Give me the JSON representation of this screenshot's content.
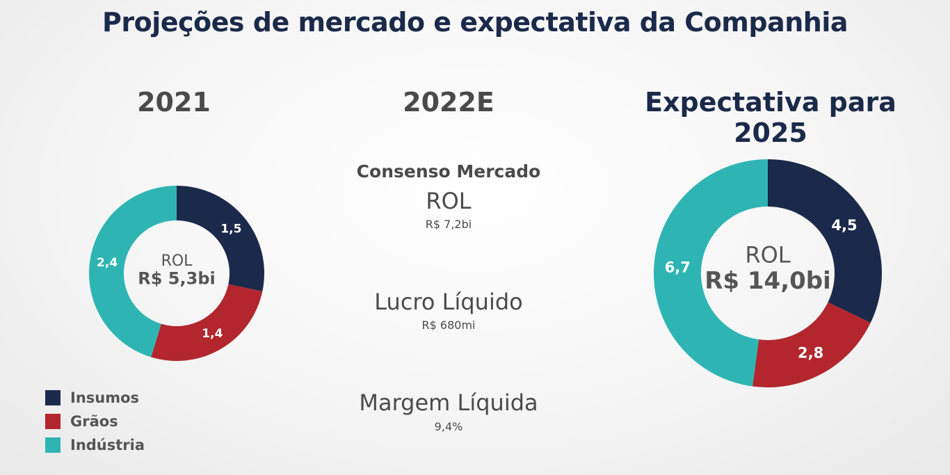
{
  "title": "Projeções de mercado e expectativa da Companhia",
  "columns": {
    "y2021": "2021",
    "y2022": "2022E",
    "y2025": "Expectativa para 2025"
  },
  "projection_2022": {
    "consensus_label": "Consenso Mercado",
    "rol_label": "ROL",
    "rol_value": "R$ 7,2bi",
    "net_income_label": "Lucro Líquido",
    "net_income_value": "R$ 680mi",
    "net_margin_label": "Margem Líquida",
    "net_margin_value": "9,4%"
  },
  "colors": {
    "insumos": "#1b2a4a",
    "graos": "#b3262d",
    "industria": "#2eb5b3"
  },
  "chart_data": [
    {
      "type": "pie",
      "variant": "donut",
      "center_label": "ROL",
      "center_value": "R$ 5,3bi",
      "categories": [
        "Insumos",
        "Grãos",
        "Indústria"
      ],
      "values": [
        1.5,
        1.4,
        2.4
      ],
      "labels": [
        "1,5",
        "1,4",
        "2,4"
      ]
    },
    {
      "type": "pie",
      "variant": "donut",
      "center_label": "ROL",
      "center_value": "R$ 14,0bi",
      "categories": [
        "Insumos",
        "Grãos",
        "Indústria"
      ],
      "values": [
        4.5,
        2.8,
        6.7
      ],
      "labels": [
        "4,5",
        "2,8",
        "6,7"
      ]
    }
  ],
  "legend": [
    {
      "label": "Insumos",
      "color": "#1b2a4a"
    },
    {
      "label": "Grãos",
      "color": "#b3262d"
    },
    {
      "label": "Indústria",
      "color": "#2eb5b3"
    }
  ]
}
